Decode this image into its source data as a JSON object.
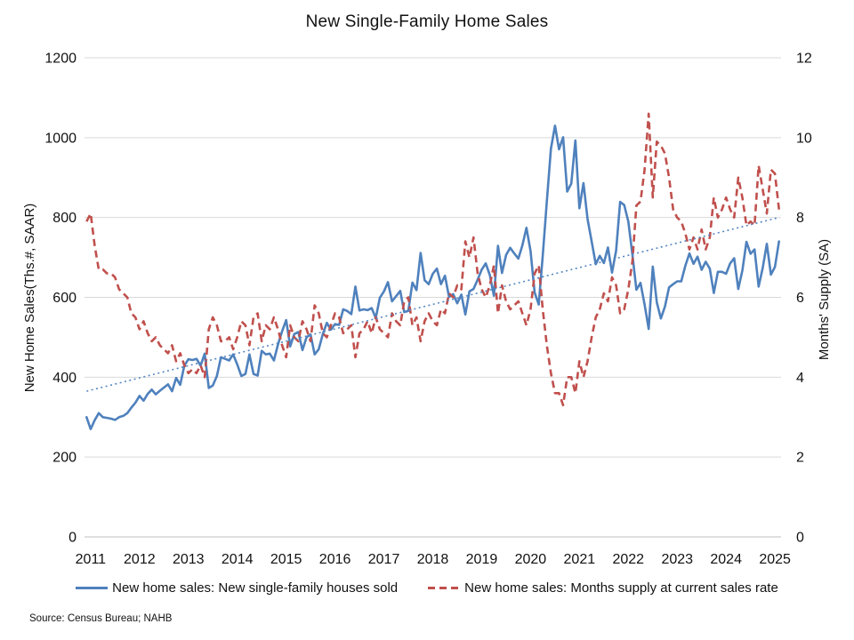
{
  "title": "New Single-Family Home Sales",
  "source": "Source: Census Bureau; NAHB",
  "colors": {
    "sales_line": "#4F81BD",
    "supply_line": "#C0504D",
    "trend_line": "#5587C2",
    "gridline": "#D9D9D9",
    "axis_line": "#BFBFBF",
    "text": "#111111"
  },
  "legend": {
    "items": [
      {
        "label": "New home sales: New single-family houses sold",
        "style": "solid"
      },
      {
        "label": "New home sales: Months supply at current sales rate",
        "style": "dashed"
      }
    ]
  },
  "chart_data": {
    "type": "line",
    "title": "New Single-Family Home Sales",
    "frequency": "monthly",
    "x_start_year": 2011,
    "x_tick_labels": [
      "2011",
      "2012",
      "2013",
      "2014",
      "2015",
      "2016",
      "2017",
      "2018",
      "2019",
      "2020",
      "2021",
      "2022",
      "2023",
      "2024",
      "2025"
    ],
    "left_axis": {
      "label": "New Home Sales(Ths.#, SAAR)",
      "min": 0,
      "max": 1200,
      "ticks": [
        0,
        200,
        400,
        600,
        800,
        1000,
        1200
      ]
    },
    "right_axis": {
      "label": "Months' Supply (SA)",
      "min": 0,
      "max": 12,
      "ticks": [
        0,
        2,
        4,
        6,
        8,
        10,
        12
      ]
    },
    "grid": true,
    "legend_position": "bottom",
    "series": [
      {
        "name": "New home sales: New single-family houses sold",
        "axis": "left",
        "style": "solid",
        "color": "#4F81BD",
        "values": [
          300,
          270,
          292,
          310,
          300,
          298,
          296,
          293,
          300,
          303,
          310,
          324,
          336,
          353,
          341,
          358,
          369,
          357,
          366,
          374,
          382,
          365,
          398,
          381,
          429,
          445,
          443,
          446,
          429,
          459,
          373,
          379,
          403,
          450,
          446,
          442,
          457,
          432,
          403,
          408,
          457,
          408,
          404,
          466,
          457,
          459,
          442,
          482,
          515,
          543,
          477,
          508,
          513,
          468,
          500,
          507,
          457,
          470,
          508,
          536,
          519,
          533,
          531,
          570,
          566,
          558,
          627,
          567,
          570,
          568,
          573,
          548,
          599,
          615,
          638,
          590,
          603,
          616,
          563,
          566,
          637,
          618,
          711,
          643,
          633,
          659,
          672,
          633,
          654,
          601,
          608,
          585,
          607,
          557,
          615,
          621,
          644,
          669,
          685,
          656,
          604,
          729,
          661,
          706,
          724,
          710,
          697,
          730,
          774,
          716,
          612,
          582,
          704,
          840,
          972,
          1030,
          971,
          1001,
          865,
          885,
          993,
          823,
          886,
          796,
          740,
          683,
          704,
          686,
          725,
          662,
          717,
          839,
          831,
          790,
          707,
          619,
          636,
          582,
          521,
          677,
          588,
          547,
          577,
          625,
          633,
          640,
          640,
          679,
          710,
          684,
          702,
          669,
          689,
          672,
          611,
          664,
          664,
          659,
          685,
          698,
          621,
          667,
          739,
          709,
          720,
          627,
          674,
          734,
          657,
          676,
          740
        ]
      },
      {
        "name": "New home sales: Months supply at current sales rate",
        "axis": "right",
        "style": "dashed",
        "color": "#C0504D",
        "values": [
          7.9,
          8.1,
          7.3,
          6.7,
          6.7,
          6.6,
          6.6,
          6.5,
          6.2,
          6.1,
          6.0,
          5.6,
          5.5,
          5.2,
          5.4,
          5.1,
          4.9,
          5.0,
          4.8,
          4.7,
          4.6,
          4.8,
          4.4,
          4.6,
          4.3,
          4.1,
          4.2,
          4.1,
          4.3,
          4.0,
          5.2,
          5.5,
          5.3,
          4.9,
          4.9,
          5.0,
          4.7,
          5.0,
          5.4,
          5.3,
          4.8,
          5.5,
          5.6,
          4.9,
          5.3,
          5.2,
          5.5,
          5.2,
          4.8,
          4.5,
          5.3,
          5.0,
          4.9,
          5.4,
          5.2,
          4.9,
          5.8,
          5.6,
          5.1,
          5.0,
          5.3,
          5.6,
          5.5,
          5.1,
          5.2,
          5.3,
          4.5,
          5.1,
          5.2,
          5.4,
          5.1,
          5.5,
          5.2,
          5.1,
          5.0,
          5.6,
          5.4,
          5.3,
          5.9,
          6.0,
          5.3,
          5.5,
          4.9,
          5.4,
          5.6,
          5.4,
          5.3,
          5.7,
          5.6,
          6.1,
          6.0,
          6.3,
          6.2,
          7.4,
          7.0,
          7.5,
          6.6,
          6.2,
          6.0,
          6.3,
          6.8,
          5.6,
          6.3,
          5.9,
          5.7,
          5.8,
          5.9,
          5.6,
          5.3,
          5.7,
          6.6,
          6.8,
          5.7,
          4.8,
          4.1,
          3.6,
          3.6,
          3.3,
          4.0,
          4.0,
          3.6,
          4.4,
          4.0,
          4.4,
          5.0,
          5.5,
          5.7,
          6.1,
          5.9,
          6.5,
          6.3,
          5.6,
          5.7,
          6.2,
          6.9,
          8.3,
          8.4,
          9.2,
          10.6,
          8.5,
          9.9,
          9.8,
          9.6,
          9.0,
          8.2,
          8.0,
          7.9,
          7.6,
          7.2,
          7.5,
          7.2,
          7.7,
          7.2,
          7.5,
          8.5,
          8.0,
          8.2,
          8.5,
          8.2,
          8.0,
          9.0,
          8.5,
          7.8,
          7.9,
          7.8,
          9.3,
          8.7,
          8.1,
          9.2,
          9.1,
          8.2
        ]
      },
      {
        "name": "linear-trend",
        "axis": "left",
        "style": "dotted",
        "color": "#5587C2",
        "trend": {
          "start": 365,
          "end": 800
        }
      }
    ]
  }
}
